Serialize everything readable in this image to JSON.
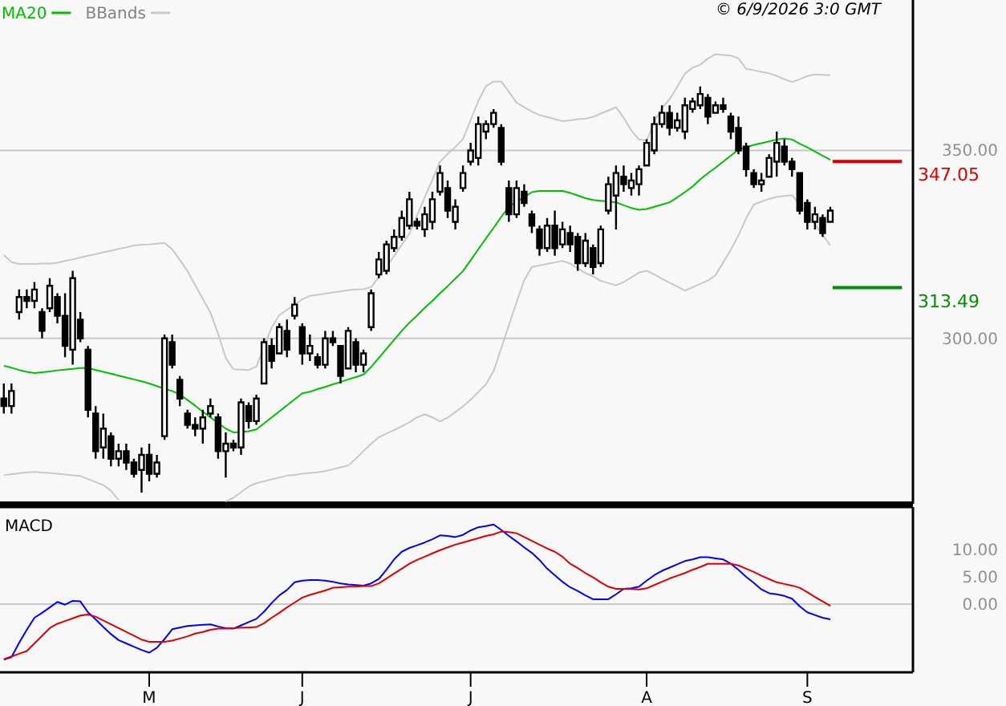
{
  "chart_data": [
    {
      "type": "candlestick",
      "legend": "top left",
      "grid": "y",
      "tick_labels": "y",
      "annotations": [
        "© 6/9/2026 3:0 GMT"
      ],
      "categories": [
        null,
        null,
        null,
        null,
        null,
        null,
        null,
        null,
        null,
        null,
        null,
        null,
        null,
        null,
        null,
        null,
        null,
        null,
        null,
        null,
        null,
        null,
        null,
        null,
        null,
        null,
        null,
        null,
        null,
        null,
        null,
        null,
        null,
        null,
        null,
        null,
        null,
        null,
        null,
        null,
        null,
        null,
        null,
        null,
        null,
        null,
        null,
        null,
        null,
        null,
        null,
        null,
        null,
        null,
        null,
        null,
        null,
        null,
        null,
        null,
        null,
        null,
        null,
        null,
        null,
        null,
        null,
        null,
        null,
        null,
        null,
        null,
        null,
        null,
        null,
        null,
        null,
        null,
        null,
        null,
        null,
        null,
        null,
        null,
        null,
        null,
        null,
        null,
        null,
        null,
        null,
        null,
        null,
        null,
        null,
        null,
        null,
        null,
        null,
        null,
        null,
        null,
        null,
        null,
        null,
        null,
        null,
        null,
        null
      ],
      "ylim": [
        256,
        390
      ],
      "yticks": [
        {
          "value": 300,
          "label": "300.00"
        },
        {
          "value": 350,
          "label": "350.00"
        }
      ],
      "ref_lines": [
        {
          "axis": "y",
          "value": 347.05,
          "label": "347.05",
          "color": "#e00000"
        },
        {
          "axis": "y",
          "value": 313.49,
          "label": "313.49",
          "color": "#009000"
        }
      ],
      "ohlc": [
        [
          284,
          288,
          280,
          282
        ],
        [
          282,
          288,
          280,
          286
        ],
        [
          307,
          313,
          305,
          311
        ],
        [
          311,
          313,
          308,
          310
        ],
        [
          310,
          315,
          308,
          313
        ],
        [
          307,
          308,
          300,
          302
        ],
        [
          308,
          316,
          307,
          314
        ],
        [
          311,
          312,
          304,
          306
        ],
        [
          306,
          312,
          295,
          298
        ],
        [
          297,
          318,
          293,
          316
        ],
        [
          305,
          307,
          299,
          300
        ],
        [
          297,
          298,
          279,
          281
        ],
        [
          280,
          282,
          268,
          270
        ],
        [
          271,
          280,
          268,
          276
        ],
        [
          274,
          275,
          266,
          268
        ],
        [
          268,
          272,
          266,
          270
        ],
        [
          270,
          272,
          265,
          267
        ],
        [
          267,
          268,
          263,
          264
        ],
        [
          265,
          271,
          259,
          269
        ],
        [
          269,
          272,
          262,
          264
        ],
        [
          264,
          269,
          263,
          267
        ],
        [
          274,
          301,
          273,
          300
        ],
        [
          299,
          301,
          292,
          293
        ],
        [
          289,
          290,
          282,
          284
        ],
        [
          280,
          281,
          276,
          277
        ],
        [
          277,
          279,
          274,
          276
        ],
        [
          276,
          281,
          272,
          279
        ],
        [
          280,
          284,
          279,
          282
        ],
        [
          279,
          280,
          268,
          270
        ],
        [
          270,
          275,
          263,
          272
        ],
        [
          272,
          273,
          270,
          271
        ],
        [
          271,
          284,
          269,
          283
        ],
        [
          282,
          283,
          276,
          278
        ],
        [
          278,
          285,
          277,
          284
        ],
        [
          288,
          300,
          288,
          299
        ],
        [
          298,
          300,
          292,
          294
        ],
        [
          296,
          304,
          296,
          303
        ],
        [
          302,
          305,
          295,
          297
        ],
        [
          306,
          311,
          305,
          309
        ],
        [
          303,
          304,
          293,
          296
        ],
        [
          296,
          301,
          294,
          298
        ],
        [
          295,
          296,
          292,
          293
        ],
        [
          293,
          302,
          292,
          300
        ],
        [
          300,
          302,
          298,
          299
        ],
        [
          298,
          298,
          288,
          290
        ],
        [
          292,
          303,
          292,
          302
        ],
        [
          299,
          300,
          291,
          293
        ],
        [
          293,
          297,
          291,
          296
        ],
        [
          303,
          313,
          302,
          312
        ],
        [
          317,
          323,
          316,
          321
        ],
        [
          318,
          326,
          317,
          325
        ],
        [
          324,
          329,
          323,
          327
        ],
        [
          327,
          334,
          326,
          332
        ],
        [
          330,
          339,
          329,
          337
        ],
        [
          331,
          332,
          329,
          330
        ],
        [
          329,
          335,
          327,
          333
        ],
        [
          331,
          339,
          329,
          337
        ],
        [
          339,
          346,
          338,
          344
        ],
        [
          340,
          342,
          332,
          334
        ],
        [
          331,
          337,
          329,
          335
        ],
        [
          340,
          346,
          339,
          344
        ],
        [
          347,
          352,
          346,
          350
        ],
        [
          348,
          359,
          346,
          357
        ],
        [
          355,
          358,
          353,
          357
        ],
        [
          357,
          361,
          356,
          360
        ],
        [
          356,
          357,
          346,
          347
        ],
        [
          340,
          342,
          331,
          333
        ],
        [
          333,
          342,
          332,
          340
        ],
        [
          339,
          341,
          335,
          336
        ],
        [
          333,
          334,
          328,
          330
        ],
        [
          329,
          330,
          322,
          324
        ],
        [
          324,
          332,
          323,
          330
        ],
        [
          330,
          334,
          322,
          324
        ],
        [
          325,
          331,
          324,
          329
        ],
        [
          328,
          330,
          323,
          325
        ],
        [
          327,
          328,
          318,
          320
        ],
        [
          320,
          328,
          319,
          326
        ],
        [
          324,
          325,
          317,
          319
        ],
        [
          320,
          330,
          319,
          329
        ],
        [
          334,
          343,
          333,
          341
        ],
        [
          338,
          346,
          329,
          344
        ],
        [
          343,
          346,
          339,
          341
        ],
        [
          340,
          344,
          338,
          342
        ],
        [
          341,
          346,
          338,
          345
        ],
        [
          346,
          353,
          346,
          352
        ],
        [
          350,
          359,
          349,
          357
        ],
        [
          357,
          362,
          356,
          360
        ],
        [
          360,
          362,
          354,
          356
        ],
        [
          356,
          360,
          355,
          358
        ],
        [
          355,
          364,
          353,
          362
        ],
        [
          361,
          364,
          360,
          363
        ],
        [
          362,
          367,
          361,
          365
        ],
        [
          364,
          365,
          357,
          359
        ],
        [
          360,
          363,
          360,
          362
        ],
        [
          362,
          364,
          360,
          361
        ],
        [
          359,
          360,
          353,
          355
        ],
        [
          356,
          359,
          349,
          350
        ],
        [
          351,
          352,
          343,
          345
        ],
        [
          344,
          345,
          340,
          341
        ],
        [
          341,
          344,
          339,
          342
        ],
        [
          343,
          349,
          343,
          348
        ],
        [
          347,
          355,
          343,
          352
        ],
        [
          351,
          353,
          346,
          347
        ],
        [
          347,
          348,
          343,
          345
        ],
        [
          344,
          344,
          333,
          334
        ],
        [
          336,
          337,
          329,
          331
        ],
        [
          331,
          335,
          329,
          333
        ],
        [
          332,
          333,
          327,
          328
        ],
        [
          331,
          335,
          331,
          334
        ]
      ],
      "series": [
        {
          "type": "line",
          "name": "MA20",
          "color": "#00c000",
          "values": [
            292.7,
            292.2,
            291.6,
            291.1,
            290.8,
            291.0,
            291.2,
            291.5,
            291.7,
            291.9,
            292.1,
            292.1,
            291.6,
            291.1,
            290.6,
            290.1,
            289.6,
            289.1,
            288.6,
            288.0,
            287.3,
            286.6,
            286.0,
            285.1,
            283.6,
            282.1,
            280.5,
            279.0,
            277.5,
            276.0,
            275.0,
            275.1,
            275.3,
            275.8,
            277.4,
            279.0,
            280.6,
            282.2,
            283.8,
            285.4,
            285.8,
            286.5,
            287.1,
            287.8,
            288.4,
            289.1,
            289.7,
            290.4,
            292.4,
            294.8,
            297.2,
            299.6,
            302.0,
            304.2,
            306.1,
            308.1,
            310.0,
            312.0,
            313.9,
            315.9,
            317.9,
            320.8,
            323.7,
            326.6,
            329.4,
            332.3,
            335.0,
            336.3,
            337.6,
            338.9,
            339.2,
            339.2,
            339.2,
            339.2,
            338.7,
            338.0,
            337.3,
            336.8,
            336.6,
            336.4,
            336.2,
            335.4,
            334.7,
            334.2,
            334.4,
            335.0,
            335.6,
            336.2,
            337.5,
            338.9,
            340.4,
            342.3,
            343.9,
            345.4,
            347.0,
            348.6,
            350.2,
            350.8,
            351.5,
            351.9,
            352.4,
            352.9,
            353.2,
            352.9,
            351.8,
            350.8,
            349.7,
            348.6,
            347.5
          ]
        },
        {
          "type": "line",
          "name": "BBands",
          "color": "#c8c8c8",
          "values": [
            322.2,
            320.3,
            319.8,
            319.8,
            319.8,
            319.9,
            319.9,
            320.1,
            320.6,
            321.0,
            321.5,
            322.0,
            322.4,
            322.9,
            323.3,
            323.8,
            324.2,
            324.7,
            324.9,
            325.0,
            325.2,
            325.4,
            323.7,
            320.9,
            317.9,
            314.2,
            310.5,
            306.9,
            301.2,
            294.8,
            291.8,
            291.7,
            291.6,
            292.5,
            297.7,
            302.9,
            306.2,
            307.6,
            309.0,
            310.4,
            311.3,
            311.6,
            311.9,
            312.2,
            312.5,
            312.8,
            313.0,
            313.1,
            313.6,
            316.3,
            319.0,
            321.9,
            324.9,
            327.9,
            332.7,
            337.5,
            342.2,
            347.0,
            349.1,
            350.9,
            353.0,
            358.1,
            363.1,
            367.1,
            368.3,
            368.3,
            365.6,
            362.7,
            361.5,
            360.3,
            359.4,
            358.9,
            358.3,
            357.8,
            358.0,
            358.3,
            358.4,
            358.9,
            359.8,
            360.6,
            361.5,
            358.7,
            355.3,
            352.9,
            352.6,
            357.6,
            361.3,
            363.6,
            366.9,
            370.4,
            372.0,
            372.8,
            374.4,
            375.6,
            375.4,
            375.2,
            374.5,
            371.7,
            371.3,
            370.9,
            370.5,
            369.8,
            368.9,
            368.2,
            368.9,
            369.8,
            370.2,
            370.1,
            370.0
          ]
        },
        {
          "type": "line",
          "color": "#c8c8c8",
          "values": [
            263.6,
            263.9,
            264.1,
            264.4,
            264.5,
            264.3,
            264.2,
            264.0,
            263.8,
            263.6,
            263.4,
            262.6,
            261.8,
            261.0,
            259.5,
            257.0,
            null,
            null,
            null,
            null,
            null,
            null,
            null,
            null,
            null,
            null,
            null,
            null,
            null,
            256.6,
            257.6,
            259.1,
            260.6,
            261.5,
            262.0,
            262.5,
            263.0,
            263.5,
            263.7,
            264.0,
            264.2,
            264.4,
            264.7,
            265.2,
            265.7,
            266.2,
            268.0,
            270.0,
            272.0,
            273.7,
            274.7,
            275.6,
            276.6,
            277.7,
            279.0,
            279.8,
            279.0,
            277.9,
            278.9,
            280.4,
            281.9,
            283.7,
            285.7,
            287.8,
            291.3,
            297.4,
            303.5,
            309.6,
            315.5,
            319.0,
            319.4,
            319.8,
            320.2,
            320.6,
            319.9,
            318.6,
            317.4,
            316.5,
            315.3,
            314.7,
            314.1,
            315.0,
            316.2,
            317.5,
            318.0,
            317.0,
            315.9,
            314.8,
            313.8,
            312.7,
            313.6,
            314.5,
            315.4,
            316.8,
            320.2,
            323.6,
            327.4,
            331.9,
            335.6,
            336.4,
            337.1,
            337.6,
            337.9,
            338.1,
            335.6,
            333.1,
            330.4,
            327.5,
            324.7
          ]
        }
      ]
    },
    {
      "type": "line",
      "title": "MACD",
      "categories": [
        null,
        null,
        null,
        null,
        null,
        null,
        null,
        null,
        null,
        null,
        null,
        null,
        null,
        null,
        null,
        null,
        null,
        null,
        null,
        "M",
        null,
        null,
        null,
        null,
        null,
        null,
        null,
        null,
        null,
        null,
        null,
        null,
        null,
        null,
        null,
        null,
        null,
        null,
        null,
        "J",
        null,
        null,
        null,
        null,
        null,
        null,
        null,
        null,
        null,
        null,
        null,
        null,
        null,
        null,
        null,
        null,
        null,
        null,
        null,
        null,
        null,
        "J",
        null,
        null,
        null,
        null,
        null,
        null,
        null,
        null,
        null,
        null,
        null,
        null,
        null,
        null,
        null,
        null,
        null,
        null,
        null,
        null,
        null,
        null,
        "A",
        null,
        null,
        null,
        null,
        null,
        null,
        null,
        null,
        null,
        null,
        null,
        null,
        null,
        null,
        null,
        null,
        null,
        null,
        null,
        null,
        "S",
        null,
        null,
        null
      ],
      "ylim": [
        -12.5,
        17.8
      ],
      "yticks": [
        {
          "value": 0,
          "label": "0.00"
        },
        {
          "value": 5,
          "label": "5.00"
        },
        {
          "value": 10,
          "label": "10.00"
        }
      ],
      "ref_lines": [
        {
          "axis": "y",
          "value": 0,
          "color": "#c8c8c8"
        }
      ],
      "series": [
        {
          "color": "#0000ff",
          "values": [
            -10.2,
            -9.7,
            -7.1,
            -4.7,
            -2.5,
            -1.6,
            -0.6,
            0.4,
            -0.1,
            0.6,
            0.5,
            -1.5,
            -2.8,
            -4.2,
            -5.5,
            -6.6,
            -7.2,
            -7.8,
            -8.4,
            -8.9,
            -8.0,
            -6.4,
            -4.6,
            -4.3,
            -4.0,
            -3.9,
            -3.8,
            -3.7,
            -4.1,
            -4.4,
            -4.5,
            -3.9,
            -3.3,
            -2.7,
            -1.4,
            0.2,
            1.6,
            2.6,
            4.0,
            4.3,
            4.4,
            4.4,
            4.3,
            4.1,
            3.8,
            3.6,
            3.5,
            3.4,
            3.8,
            4.6,
            6.3,
            8.2,
            9.6,
            10.3,
            10.8,
            11.3,
            11.9,
            12.6,
            12.5,
            12.3,
            12.7,
            13.5,
            14.1,
            14.3,
            14.6,
            13.6,
            12.5,
            11.5,
            10.4,
            9.4,
            8.1,
            6.5,
            5.3,
            4.1,
            3.1,
            2.4,
            1.6,
            0.9,
            0.9,
            0.9,
            1.8,
            2.8,
            2.9,
            3.2,
            4.3,
            5.3,
            6.1,
            6.7,
            7.3,
            7.9,
            8.2,
            8.6,
            8.6,
            8.4,
            8.2,
            7.4,
            6.3,
            5.0,
            3.9,
            2.7,
            2.0,
            1.8,
            1.5,
            1.0,
            -0.4,
            -1.5,
            -2.0,
            -2.5,
            -2.8
          ]
        },
        {
          "color": "#e00000",
          "values": [
            -10.1,
            -9.6,
            -9.1,
            -8.6,
            -7.2,
            -5.8,
            -4.4,
            -3.6,
            -3.1,
            -2.6,
            -2.1,
            -1.9,
            -2.3,
            -3.0,
            -3.7,
            -4.4,
            -5.1,
            -5.8,
            -6.5,
            -6.9,
            -6.9,
            -6.9,
            -6.7,
            -6.3,
            -5.9,
            -5.4,
            -5.1,
            -4.7,
            -4.5,
            -4.5,
            -4.4,
            -4.3,
            -4.3,
            -4.2,
            -3.5,
            -2.5,
            -1.6,
            -0.6,
            0.3,
            1.2,
            1.7,
            2.1,
            2.5,
            3.0,
            3.1,
            3.2,
            3.2,
            3.3,
            3.3,
            3.8,
            4.7,
            5.6,
            6.5,
            7.4,
            8.1,
            8.7,
            9.3,
            9.9,
            10.4,
            10.9,
            11.3,
            11.7,
            12.1,
            12.5,
            12.8,
            13.3,
            13.2,
            13.0,
            12.3,
            11.6,
            10.9,
            10.2,
            9.6,
            8.7,
            7.4,
            6.6,
            5.7,
            4.9,
            4.0,
            3.2,
            2.8,
            2.8,
            2.8,
            2.7,
            2.9,
            3.5,
            4.1,
            4.7,
            5.2,
            5.7,
            6.3,
            6.8,
            7.4,
            7.4,
            7.4,
            7.4,
            7.1,
            6.5,
            5.9,
            5.2,
            4.6,
            4.0,
            3.7,
            3.4,
            3.0,
            2.2,
            1.3,
            0.5,
            -0.3
          ]
        }
      ]
    }
  ]
}
